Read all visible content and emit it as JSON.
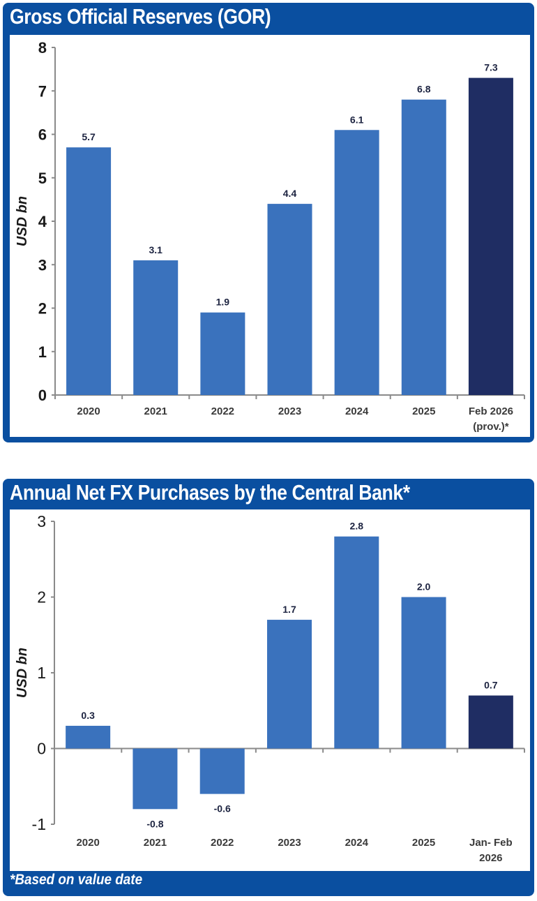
{
  "chart_data": [
    {
      "type": "bar",
      "title": "Gross Official Reserves (GOR)",
      "xlabel": "",
      "ylabel": "USD bn",
      "ylim": [
        0,
        8
      ],
      "yticks": [
        "0",
        "1",
        "2",
        "3",
        "4",
        "5",
        "6",
        "7",
        "8"
      ],
      "categories": [
        [
          "2020"
        ],
        [
          "2021"
        ],
        [
          "2022"
        ],
        [
          "2023"
        ],
        [
          "2024"
        ],
        [
          "2025"
        ],
        [
          "Feb 2026",
          "(prov.)*"
        ]
      ],
      "values": [
        5.7,
        3.1,
        1.9,
        4.4,
        6.1,
        6.8,
        7.3
      ],
      "labels": [
        "5.7",
        "3.1",
        "1.9",
        "4.4",
        "6.1",
        "6.8",
        "7.3"
      ],
      "highlight_index": 6,
      "grid": false
    },
    {
      "type": "bar",
      "title": "Annual Net FX Purchases by the Central Bank*",
      "xlabel": "",
      "ylabel": "USD bn",
      "ylim": [
        -1,
        3
      ],
      "yticks": [
        "-1",
        "0",
        "1",
        "2",
        "3"
      ],
      "categories": [
        [
          "2020"
        ],
        [
          "2021"
        ],
        [
          "2022"
        ],
        [
          "2023"
        ],
        [
          "2024"
        ],
        [
          "2025"
        ],
        [
          "Jan- Feb",
          "2026"
        ]
      ],
      "values": [
        0.3,
        -0.8,
        -0.6,
        1.7,
        2.8,
        2.0,
        0.7
      ],
      "labels": [
        "0.3",
        "-0.8",
        "-0.6",
        "1.7",
        "2.8",
        "2.0",
        "0.7"
      ],
      "highlight_index": 6,
      "grid": false,
      "footnote": "*Based on value date"
    }
  ],
  "colors": {
    "frame": "#0a4fa0",
    "bar": "#3a72bd",
    "bar_highlight": "#1f2d63",
    "axis": "#8a8a8a",
    "label": "#1c2340"
  }
}
